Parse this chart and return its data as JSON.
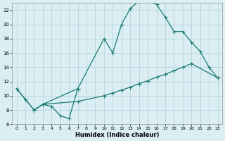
{
  "xlabel": "Humidex (Indice chaleur)",
  "background_color": "#daeef3",
  "grid_color": "#aecfd8",
  "line_color": "#1a7a6e",
  "xlim": [
    -0.5,
    23.5
  ],
  "ylim": [
    6,
    23
  ],
  "xticks": [
    0,
    1,
    2,
    3,
    4,
    5,
    6,
    7,
    8,
    9,
    10,
    11,
    12,
    13,
    14,
    15,
    16,
    17,
    18,
    19,
    20,
    21,
    22,
    23
  ],
  "yticks": [
    6,
    8,
    10,
    12,
    14,
    16,
    18,
    20,
    22
  ],
  "line1_x": [
    0,
    1,
    2,
    3,
    4,
    5,
    6,
    7
  ],
  "line1_y": [
    11,
    9.5,
    8,
    8.8,
    8.5,
    7.2,
    6.8,
    11.0
  ],
  "line2_x": [
    0,
    1,
    2,
    3,
    7,
    10,
    11,
    12,
    13,
    14,
    15,
    16,
    17,
    18,
    19,
    20,
    21,
    22,
    23
  ],
  "line2_y": [
    11,
    9.5,
    8,
    8.8,
    11.0,
    18.0,
    16.0,
    20.0,
    22.2,
    23.3,
    23.3,
    22.8,
    21.0,
    19.0,
    19.0,
    17.5,
    16.2,
    14.0,
    12.5
  ],
  "line3_x": [
    2,
    3,
    7,
    10,
    11,
    12,
    13,
    14,
    15,
    16,
    17,
    18,
    19,
    20,
    23
  ],
  "line3_y": [
    8,
    8.8,
    9.2,
    10.0,
    10.4,
    10.8,
    11.2,
    11.7,
    12.1,
    12.6,
    13.0,
    13.5,
    14.0,
    14.5,
    12.5
  ]
}
